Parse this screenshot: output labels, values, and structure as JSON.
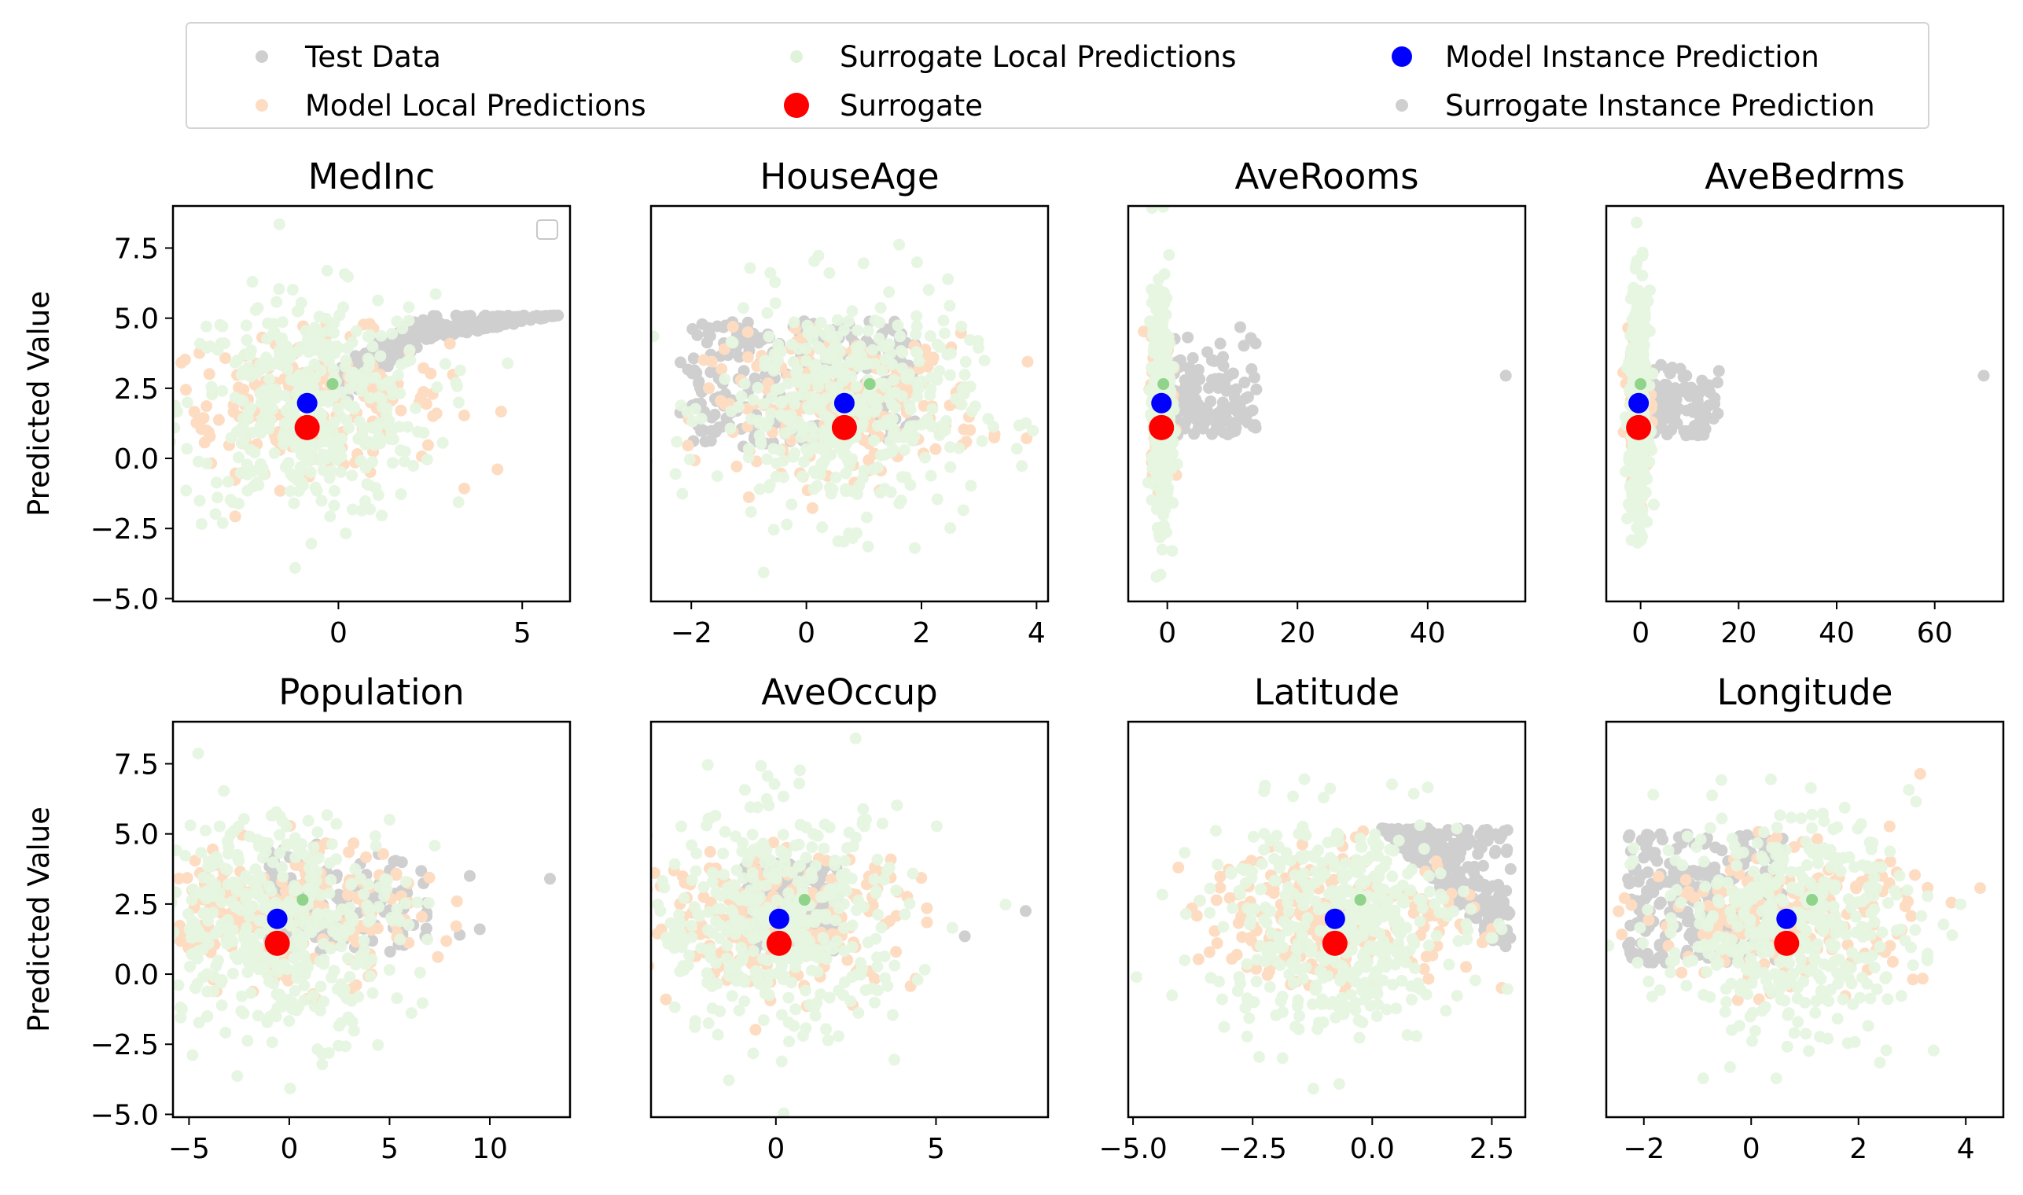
{
  "legend": [
    {
      "label": "Test Data",
      "color": "#cfcfcf",
      "marker": "small"
    },
    {
      "label": "Model Local Predictions",
      "color": "#fddcc2",
      "marker": "small"
    },
    {
      "label": "Surrogate Local Predictions",
      "color": "#dff3d9",
      "marker": "small"
    },
    {
      "label": "Surrogate",
      "color": "#ff0000",
      "marker": "large"
    },
    {
      "label": "Model Instance Prediction",
      "color": "#0000ff",
      "marker": "medium"
    },
    {
      "label": "Surrogate Instance Prediction",
      "color": "#cfcfcf",
      "marker": "small"
    }
  ],
  "ylabel": "Predicted Value",
  "chart_data": [
    {
      "type": "scatter",
      "title": "MedInc",
      "xlim": [
        -4.5,
        6.3
      ],
      "ylim": [
        -5.1,
        9.0
      ],
      "xticks": [
        0,
        5
      ],
      "xtick_labels": [
        "0",
        "5"
      ],
      "yticks": [
        -5.0,
        -2.5,
        0.0,
        2.5,
        5.0,
        7.5
      ],
      "ytick_labels": [
        "−5.0",
        "−2.5",
        "0.0",
        "2.5",
        "5.0",
        "7.5"
      ],
      "show_ylabel": true,
      "empty_legend": true,
      "model_instance": {
        "x": -0.85,
        "y": 1.97
      },
      "surrogate": {
        "x": -0.85,
        "y": 1.1
      },
      "test_data": {
        "x_range": [
          0.0,
          6.0
        ],
        "y_range": [
          0.8,
          5.1
        ],
        "shape": "rising"
      }
    },
    {
      "type": "scatter",
      "title": "HouseAge",
      "xlim": [
        -2.7,
        4.2
      ],
      "ylim": [
        -5.1,
        9.0
      ],
      "xticks": [
        -2,
        0,
        2,
        4
      ],
      "xtick_labels": [
        "−2",
        "0",
        "2",
        "4"
      ],
      "yticks": [],
      "ytick_labels": [],
      "show_ylabel": false,
      "model_instance": {
        "x": 0.66,
        "y": 1.97
      },
      "surrogate": {
        "x": 0.66,
        "y": 1.1
      },
      "test_data": {
        "x_range": [
          -2.2,
          1.9
        ],
        "y_range": [
          0.4,
          4.9
        ],
        "shape": "band"
      }
    },
    {
      "type": "scatter",
      "title": "AveRooms",
      "xlim": [
        -6.0,
        55.0
      ],
      "ylim": [
        -5.1,
        9.0
      ],
      "xticks": [
        0,
        20,
        40
      ],
      "xtick_labels": [
        "0",
        "20",
        "40"
      ],
      "yticks": [],
      "ytick_labels": [],
      "show_ylabel": false,
      "model_instance": {
        "x": -0.9,
        "y": 1.97
      },
      "surrogate": {
        "x": -0.9,
        "y": 1.1
      },
      "test_data": {
        "x_range": [
          -1.5,
          14.0
        ],
        "y_range": [
          0.8,
          5.0
        ],
        "shape": "tail"
      },
      "outliers": [
        {
          "x": 52.0,
          "y": 2.95
        }
      ]
    },
    {
      "type": "scatter",
      "title": "AveBedrms",
      "xlim": [
        -7.0,
        74.0
      ],
      "ylim": [
        -5.1,
        9.0
      ],
      "xticks": [
        0,
        20,
        40,
        60
      ],
      "xtick_labels": [
        "0",
        "20",
        "40",
        "60"
      ],
      "yticks": [],
      "ytick_labels": [],
      "show_ylabel": false,
      "model_instance": {
        "x": -0.4,
        "y": 1.97
      },
      "surrogate": {
        "x": -0.4,
        "y": 1.1
      },
      "test_data": {
        "x_range": [
          -1.0,
          16.0
        ],
        "y_range": [
          0.8,
          4.0
        ],
        "shape": "tail"
      },
      "outliers": [
        {
          "x": 70.0,
          "y": 2.95
        }
      ]
    },
    {
      "type": "scatter",
      "title": "Population",
      "xlim": [
        -5.8,
        14.0
      ],
      "ylim": [
        -5.1,
        9.0
      ],
      "xticks": [
        -5,
        0,
        5,
        10
      ],
      "xtick_labels": [
        "−5",
        "0",
        "5",
        "10"
      ],
      "yticks": [
        -5.0,
        -2.5,
        0.0,
        2.5,
        5.0,
        7.5
      ],
      "ytick_labels": [
        "−5.0",
        "−2.5",
        "0.0",
        "2.5",
        "5.0",
        "7.5"
      ],
      "show_ylabel": true,
      "model_instance": {
        "x": -0.6,
        "y": 1.97
      },
      "surrogate": {
        "x": -0.6,
        "y": 1.1
      },
      "test_data": {
        "x_range": [
          -1.0,
          7.0
        ],
        "y_range": [
          0.8,
          5.0
        ],
        "shape": "tail"
      },
      "outliers": [
        {
          "x": 13.0,
          "y": 3.4
        },
        {
          "x": 9.5,
          "y": 1.6
        },
        {
          "x": 9.0,
          "y": 3.5
        },
        {
          "x": 8.5,
          "y": 1.4
        }
      ]
    },
    {
      "type": "scatter",
      "title": "AveOccup",
      "xlim": [
        -3.9,
        8.5
      ],
      "ylim": [
        -5.1,
        9.0
      ],
      "xticks": [
        0,
        5
      ],
      "xtick_labels": [
        "0",
        "5"
      ],
      "yticks": [],
      "ytick_labels": [],
      "show_ylabel": false,
      "model_instance": {
        "x": 0.1,
        "y": 1.97
      },
      "surrogate": {
        "x": 0.1,
        "y": 1.1
      },
      "test_data": {
        "x_range": [
          -1.0,
          2.0
        ],
        "y_range": [
          0.8,
          4.0
        ],
        "shape": "band"
      },
      "outliers": [
        {
          "x": 7.8,
          "y": 2.25
        },
        {
          "x": 5.9,
          "y": 1.35
        }
      ]
    },
    {
      "type": "scatter",
      "title": "Latitude",
      "xlim": [
        -5.1,
        3.2
      ],
      "ylim": [
        -5.1,
        9.0
      ],
      "xticks": [
        -5.0,
        -2.5,
        0.0,
        2.5
      ],
      "xtick_labels": [
        "−5.0",
        "−2.5",
        "0.0",
        "2.5"
      ],
      "yticks": [],
      "ytick_labels": [],
      "show_ylabel": false,
      "model_instance": {
        "x": -0.78,
        "y": 1.97
      },
      "surrogate": {
        "x": -0.78,
        "y": 1.1
      },
      "test_data": {
        "x_range": [
          0.2,
          2.9
        ],
        "y_range": [
          0.4,
          5.2
        ],
        "shape": "falling"
      }
    },
    {
      "type": "scatter",
      "title": "Longitude",
      "xlim": [
        -2.7,
        4.7
      ],
      "ylim": [
        -5.1,
        9.0
      ],
      "xticks": [
        -2,
        0,
        2,
        4
      ],
      "xtick_labels": [
        "−2",
        "0",
        "2",
        "4"
      ],
      "yticks": [],
      "ytick_labels": [],
      "show_ylabel": false,
      "model_instance": {
        "x": 0.66,
        "y": 1.97
      },
      "surrogate": {
        "x": 0.66,
        "y": 1.1
      },
      "test_data": {
        "x_range": [
          -2.3,
          0.6
        ],
        "y_range": [
          0.4,
          5.0
        ],
        "shape": "band"
      }
    }
  ]
}
